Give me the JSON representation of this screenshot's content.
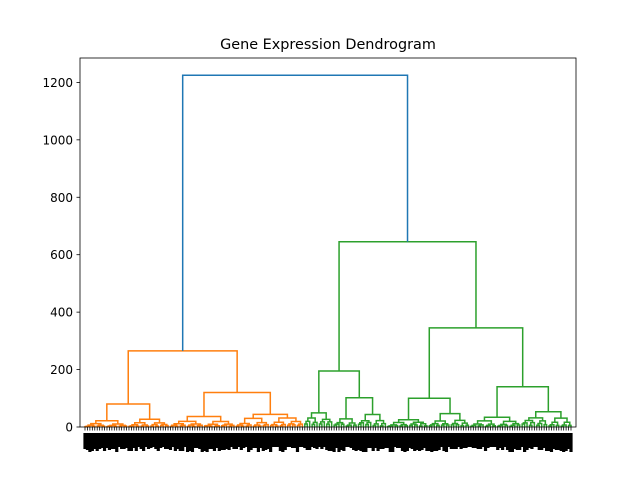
{
  "chart_data": {
    "type": "dendrogram",
    "title": "Gene Expression Dendrogram",
    "xlabel": "",
    "ylabel": "",
    "ylim": [
      0,
      1285
    ],
    "y_ticks": [
      0,
      200,
      400,
      600,
      800,
      1000,
      1200
    ],
    "y_tick_labels": [
      "0",
      "200",
      "400",
      "600",
      "800",
      "1000",
      "1200"
    ],
    "grid": false,
    "leaf_count": 200,
    "leaf_labels_note": "leaf labels are rendered rotated and overlapping, illegible",
    "colors": {
      "root": "#1f77b4",
      "cluster_1": "#ff7f0e",
      "cluster_2": "#2ca02c"
    },
    "main_merges": [
      {
        "name": "root",
        "height": 1225,
        "color": "root"
      },
      {
        "name": "cluster_1_top",
        "height": 265,
        "color": "cluster_1"
      },
      {
        "name": "cluster_2_top",
        "height": 645,
        "color": "cluster_2"
      },
      {
        "name": "cluster_1_left",
        "height": 80,
        "color": "cluster_1"
      },
      {
        "name": "cluster_1_right",
        "height": 120,
        "color": "cluster_1"
      },
      {
        "name": "cluster_2_left",
        "height": 195,
        "color": "cluster_2"
      },
      {
        "name": "cluster_2_right",
        "height": 345,
        "color": "cluster_2"
      },
      {
        "name": "cluster_2_right_left",
        "height": 100,
        "color": "cluster_2"
      },
      {
        "name": "cluster_2_right_right",
        "height": 140,
        "color": "cluster_2"
      }
    ]
  }
}
